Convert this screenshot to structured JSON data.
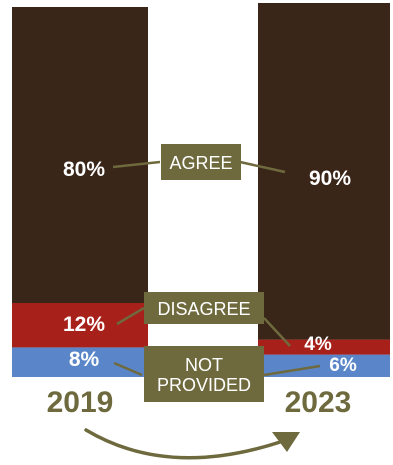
{
  "chart_data": {
    "type": "bar",
    "stacked": true,
    "percent": true,
    "categories": [
      "2019",
      "2023"
    ],
    "series": [
      {
        "name": "AGREE",
        "label_lines": [
          "AGREE"
        ],
        "values": [
          80,
          90
        ],
        "value_labels": [
          "80%",
          "90%"
        ],
        "color": "#3a2519"
      },
      {
        "name": "DISAGREE",
        "label_lines": [
          "DISAGREE"
        ],
        "values": [
          12,
          4
        ],
        "value_labels": [
          "12%",
          "4%"
        ],
        "color": "#a8201a"
      },
      {
        "name": "NOT PROVIDED",
        "label_lines": [
          "NOT",
          "PROVIDED"
        ],
        "values": [
          8,
          6
        ],
        "value_labels": [
          "8%",
          "6%"
        ],
        "color": "#5a86c9"
      }
    ],
    "ylim": [
      0,
      100
    ],
    "legend": "center",
    "colors": {
      "label_box": "#6e6a3e",
      "connector": "#6e6a3e",
      "year_text": "#6e6a3e",
      "arrow": "#6e6a3e",
      "value_text": "#ffffff"
    }
  }
}
